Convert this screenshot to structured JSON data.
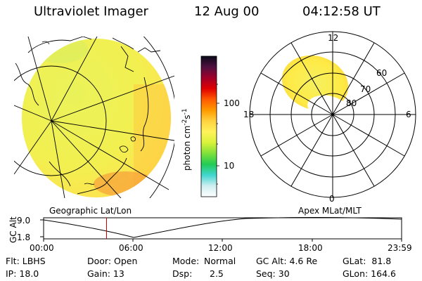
{
  "header": {
    "instrument": "Ultraviolet Imager",
    "date": "12 Aug 00",
    "time": "04:12:58 UT"
  },
  "colorbar": {
    "unit_label": "photon cm",
    "exp1": "-2",
    "unit_mid": "s",
    "exp2": "-1",
    "tick_high": "100",
    "tick_low": "10",
    "colors": [
      "#ffffff",
      "#cfeef0",
      "#3fd6d0",
      "#22cc55",
      "#7fe03a",
      "#d9f23a",
      "#fff25a",
      "#ffd240",
      "#ff9a00",
      "#ff5a00",
      "#e00000",
      "#a0002a",
      "#501040",
      "#0a0a18"
    ]
  },
  "geo_panel": {
    "caption": "Geographic Lat/Lon",
    "fill_color": "#e8f05a"
  },
  "polar_panel": {
    "caption": "Apex MLat/MLT",
    "mlt_top": "12",
    "mlt_left": "18",
    "mlt_right": "6",
    "mlt_bottom": "0",
    "lat_60": "60",
    "lat_70": "70",
    "lat_80": "80"
  },
  "timeline": {
    "ylabel": "GC Alt",
    "ytick_top": "9.0",
    "ytick_bottom": "1.8",
    "xticks": [
      "00:00",
      "06:00",
      "12:00",
      "18:00",
      "23:59"
    ],
    "marker_time": "04:12:58",
    "marker_color": "#cc0000"
  },
  "info": {
    "flt": "Flt: LBHS",
    "ip": "IP: 18.0",
    "door": "Door: Open",
    "gain": "Gain: 13",
    "mode_label": "Mode:",
    "mode_value": "Normal",
    "dsp_label": "Dsp:",
    "dsp_value": "2.5",
    "gcalt": "GC Alt: 4.6 Re",
    "seq": "Seq: 30",
    "glat": "GLat:  81.8",
    "glon": "GLon: 164.6"
  }
}
